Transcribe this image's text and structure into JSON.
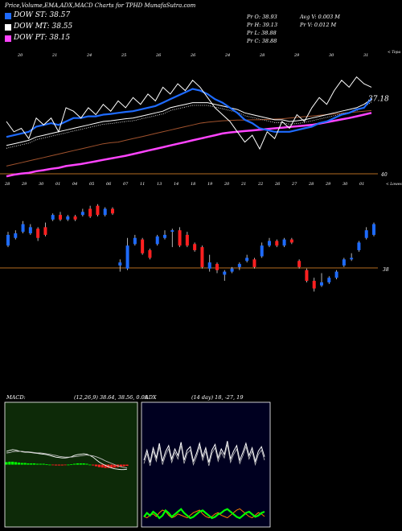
{
  "header": {
    "title": "Price,Volume,EMA,ADX,MACD Charts for TPHD MunafaSutra.com"
  },
  "legend": [
    {
      "label": "DOW ST: 38.57",
      "color": "#1e6bff"
    },
    {
      "label": "DOW MT: 38.55",
      "color": "#ffffff"
    },
    {
      "label": "DOW PT: 38.15",
      "color": "#ff44ff"
    }
  ],
  "stats": {
    "pr_open": "Pr O: 38.93",
    "pr_high": "Pr H: 39.13",
    "pr_low": "Pr L: 38.88",
    "pr_close": "Pr C: 38.88",
    "avg_vol": "Avg V: 0.003 M",
    "pr_vol": "Pr V: 0.012 M"
  },
  "colors": {
    "up": "#1e6bff",
    "down": "#ff2020",
    "ema_short": "#1e6bff",
    "ema_mid": "#ffffff",
    "ema_long": "#ff44ff",
    "ema_brown": "#a0522d",
    "level_line": "#b36b1f",
    "macd_bg": "#0d2a08",
    "adx_bg": "#000020",
    "macd_hist": "#00ff00",
    "adx_di_plus": "#00ff00",
    "adx_di_minus": "#ff7f00"
  },
  "chart_data": [
    {
      "type": "line",
      "name": "price-ema",
      "top_labels": [
        "20",
        "21",
        "24",
        "25",
        "26",
        "26",
        "24",
        "28",
        "29",
        "30",
        "31"
      ],
      "bottom_labels": [
        "28",
        "29",
        "30",
        "01",
        "04",
        "05",
        "06",
        "07",
        "11",
        "13",
        "14",
        "18",
        "19",
        "20",
        "21",
        "22",
        "26",
        "27",
        "28",
        "29",
        "30",
        "01"
      ],
      "level_value": "40",
      "last_value": "37.18",
      "top_right_label": "< Topa",
      "bottom_right_label": "< Lowesa",
      "price": [
        37.9,
        37.6,
        37.7,
        37.4,
        38.0,
        37.8,
        38.0,
        37.6,
        38.3,
        38.2,
        38.0,
        38.3,
        38.1,
        38.4,
        38.2,
        38.5,
        38.3,
        38.6,
        38.4,
        38.7,
        38.5,
        38.9,
        38.7,
        39.0,
        38.8,
        39.1,
        38.9,
        38.6,
        38.3,
        38.1,
        37.9,
        37.6,
        37.3,
        37.5,
        37.1,
        37.6,
        37.4,
        37.9,
        37.7,
        38.1,
        37.9,
        38.3,
        38.6,
        38.4,
        38.8,
        39.1,
        38.9,
        39.2,
        39.0,
        38.9
      ],
      "ema_short": [
        37.45,
        37.5,
        37.55,
        37.6,
        37.75,
        37.8,
        37.85,
        37.8,
        37.9,
        38.0,
        38.0,
        38.05,
        38.05,
        38.1,
        38.12,
        38.15,
        38.18,
        38.2,
        38.25,
        38.3,
        38.35,
        38.45,
        38.55,
        38.65,
        38.75,
        38.85,
        38.8,
        38.7,
        38.55,
        38.45,
        38.3,
        38.15,
        37.95,
        37.85,
        37.7,
        37.65,
        37.6,
        37.6,
        37.6,
        37.65,
        37.7,
        37.75,
        37.85,
        37.9,
        38.0,
        38.1,
        38.15,
        38.25,
        38.3,
        38.57
      ],
      "ema_mid": [
        37.2,
        37.25,
        37.3,
        37.35,
        37.45,
        37.5,
        37.55,
        37.6,
        37.65,
        37.7,
        37.75,
        37.8,
        37.85,
        37.9,
        37.92,
        37.95,
        37.98,
        38.0,
        38.05,
        38.1,
        38.15,
        38.2,
        38.3,
        38.35,
        38.4,
        38.45,
        38.45,
        38.45,
        38.4,
        38.35,
        38.3,
        38.25,
        38.15,
        38.1,
        38.05,
        38.0,
        37.95,
        37.95,
        37.9,
        37.92,
        37.95,
        38.0,
        38.05,
        38.1,
        38.15,
        38.2,
        38.25,
        38.3,
        38.4,
        38.55
      ],
      "ema_brown": [
        36.6,
        36.65,
        36.7,
        36.75,
        36.8,
        36.85,
        36.9,
        36.95,
        37.0,
        37.05,
        37.1,
        37.15,
        37.2,
        37.25,
        37.28,
        37.3,
        37.35,
        37.4,
        37.45,
        37.5,
        37.55,
        37.6,
        37.65,
        37.7,
        37.75,
        37.8,
        37.85,
        37.88,
        37.9,
        37.92,
        37.93,
        37.94,
        37.94,
        37.95,
        37.95,
        37.96,
        37.97,
        37.98,
        38.0,
        38.02,
        38.04,
        38.06,
        38.08,
        38.1,
        38.12,
        38.14,
        38.16,
        38.18,
        38.2,
        38.22
      ],
      "ema_long": [
        36.3,
        36.35,
        36.38,
        36.4,
        36.45,
        36.48,
        36.52,
        36.55,
        36.6,
        36.63,
        36.66,
        36.7,
        36.74,
        36.78,
        36.82,
        36.86,
        36.9,
        36.95,
        37.0,
        37.05,
        37.1,
        37.15,
        37.2,
        37.25,
        37.3,
        37.35,
        37.4,
        37.45,
        37.5,
        37.55,
        37.58,
        37.6,
        37.62,
        37.64,
        37.66,
        37.68,
        37.7,
        37.72,
        37.74,
        37.76,
        37.78,
        37.8,
        37.84,
        37.88,
        37.92,
        37.96,
        38.0,
        38.05,
        38.1,
        38.15
      ],
      "ylim": [
        36.0,
        39.8
      ]
    },
    {
      "type": "bar",
      "name": "candles",
      "level_value": "38",
      "candles": [
        {
          "o": 36.9,
          "c": 37.6,
          "h": 37.8,
          "l": 36.8
        },
        {
          "o": 37.4,
          "c": 37.7,
          "h": 37.9,
          "l": 37.3
        },
        {
          "o": 37.8,
          "c": 38.3,
          "h": 38.5,
          "l": 37.7
        },
        {
          "o": 37.7,
          "c": 38.1,
          "h": 38.3,
          "l": 37.6
        },
        {
          "o": 38.0,
          "c": 37.4,
          "h": 38.1,
          "l": 37.2
        },
        {
          "o": 38.1,
          "c": 37.6,
          "h": 38.4,
          "l": 37.5
        },
        {
          "o": 38.6,
          "c": 38.9,
          "h": 39.0,
          "l": 38.5
        },
        {
          "o": 38.9,
          "c": 38.6,
          "h": 39.1,
          "l": 38.5
        },
        {
          "o": 38.6,
          "c": 38.8,
          "h": 38.9,
          "l": 38.5
        },
        {
          "o": 38.8,
          "c": 38.6,
          "h": 38.9,
          "l": 38.5
        },
        {
          "o": 38.9,
          "c": 39.1,
          "h": 39.3,
          "l": 38.8
        },
        {
          "o": 39.3,
          "c": 38.8,
          "h": 39.5,
          "l": 38.7
        },
        {
          "o": 39.5,
          "c": 38.9,
          "h": 39.6,
          "l": 38.8
        },
        {
          "o": 38.9,
          "c": 39.3,
          "h": 39.4,
          "l": 38.8
        },
        {
          "o": 39.3,
          "c": 39.0,
          "h": 39.4,
          "l": 38.9
        },
        {
          "o": 35.6,
          "c": 35.8,
          "h": 36.0,
          "l": 35.2
        },
        {
          "o": 35.4,
          "c": 36.9,
          "h": 37.4,
          "l": 35.3
        },
        {
          "o": 37.0,
          "c": 37.4,
          "h": 37.6,
          "l": 36.9
        },
        {
          "o": 37.3,
          "c": 36.4,
          "h": 37.4,
          "l": 36.3
        },
        {
          "o": 36.6,
          "c": 36.1,
          "h": 36.7,
          "l": 36.0
        },
        {
          "o": 37.0,
          "c": 37.5,
          "h": 37.6,
          "l": 36.9
        },
        {
          "o": 37.4,
          "c": 37.6,
          "h": 37.9,
          "l": 37.3
        },
        {
          "o": 37.8,
          "c": 37.9,
          "h": 38.0,
          "l": 36.8
        },
        {
          "o": 37.9,
          "c": 36.9,
          "h": 38.1,
          "l": 36.8
        },
        {
          "o": 37.6,
          "c": 36.9,
          "h": 37.8,
          "l": 36.8
        },
        {
          "o": 37.0,
          "c": 36.6,
          "h": 37.1,
          "l": 36.5
        },
        {
          "o": 36.8,
          "c": 35.5,
          "h": 36.9,
          "l": 35.4
        },
        {
          "o": 35.4,
          "c": 35.8,
          "h": 36.3,
          "l": 35.2
        },
        {
          "o": 35.7,
          "c": 35.3,
          "h": 35.8,
          "l": 35.1
        },
        {
          "o": 35.0,
          "c": 35.2,
          "h": 35.3,
          "l": 34.6
        },
        {
          "o": 35.2,
          "c": 35.4,
          "h": 35.5,
          "l": 35.1
        },
        {
          "o": 35.5,
          "c": 35.7,
          "h": 35.8,
          "l": 35.3
        },
        {
          "o": 35.9,
          "c": 36.1,
          "h": 36.3,
          "l": 35.8
        },
        {
          "o": 36.0,
          "c": 35.5,
          "h": 36.1,
          "l": 35.4
        },
        {
          "o": 36.2,
          "c": 36.9,
          "h": 37.1,
          "l": 36.1
        },
        {
          "o": 36.9,
          "c": 37.2,
          "h": 37.4,
          "l": 36.8
        },
        {
          "o": 37.2,
          "c": 36.9,
          "h": 37.3,
          "l": 36.8
        },
        {
          "o": 36.9,
          "c": 37.3,
          "h": 37.4,
          "l": 36.8
        },
        {
          "o": 37.3,
          "c": 37.1,
          "h": 37.4,
          "l": 37.0
        },
        {
          "o": 35.9,
          "c": 35.5,
          "h": 36.0,
          "l": 35.4
        },
        {
          "o": 35.3,
          "c": 34.6,
          "h": 35.4,
          "l": 34.5
        },
        {
          "o": 34.6,
          "c": 34.1,
          "h": 34.8,
          "l": 33.9
        },
        {
          "o": 34.3,
          "c": 34.5,
          "h": 35.1,
          "l": 34.2
        },
        {
          "o": 34.5,
          "c": 34.8,
          "h": 34.9,
          "l": 34.4
        },
        {
          "o": 34.8,
          "c": 35.2,
          "h": 35.3,
          "l": 34.7
        },
        {
          "o": 35.6,
          "c": 36.0,
          "h": 36.1,
          "l": 35.5
        },
        {
          "o": 36.0,
          "c": 36.1,
          "h": 36.4,
          "l": 35.9
        },
        {
          "o": 36.6,
          "c": 37.1,
          "h": 37.2,
          "l": 36.5
        },
        {
          "o": 37.4,
          "c": 37.9,
          "h": 38.1,
          "l": 37.3
        },
        {
          "o": 37.6,
          "c": 38.3,
          "h": 38.4,
          "l": 37.5
        }
      ],
      "ylim": [
        33.5,
        39.8
      ]
    },
    {
      "type": "line",
      "name": "macd",
      "label": "MACD:",
      "params": "(12,26,9) 38.64, 38.56, 0.08",
      "macd_line": [
        0.32,
        0.34,
        0.36,
        0.35,
        0.33,
        0.31,
        0.3,
        0.3,
        0.29,
        0.28,
        0.27,
        0.26,
        0.25,
        0.24,
        0.22,
        0.2,
        0.18,
        0.17,
        0.16,
        0.16,
        0.17,
        0.19,
        0.22,
        0.24,
        0.25,
        0.26,
        0.25,
        0.22,
        0.18,
        0.12,
        0.06,
        0.02,
        -0.02,
        -0.05,
        -0.08,
        -0.1,
        -0.11,
        -0.12,
        -0.12,
        -0.11
      ],
      "signal_line": [
        0.28,
        0.29,
        0.31,
        0.32,
        0.32,
        0.32,
        0.31,
        0.31,
        0.3,
        0.29,
        0.28,
        0.28,
        0.27,
        0.26,
        0.25,
        0.23,
        0.22,
        0.2,
        0.19,
        0.18,
        0.18,
        0.18,
        0.19,
        0.2,
        0.21,
        0.22,
        0.23,
        0.22,
        0.21,
        0.19,
        0.16,
        0.13,
        0.09,
        0.06,
        0.03,
        0.0,
        -0.03,
        -0.05,
        -0.07,
        -0.08
      ],
      "histogram": [
        0.06,
        0.07,
        0.07,
        0.06,
        0.05,
        0.04,
        0.04,
        0.03,
        0.03,
        0.03,
        0.02,
        0.02,
        0.02,
        0.01,
        0.0,
        -0.01,
        -0.02,
        -0.02,
        -0.02,
        -0.01,
        0.0,
        0.01,
        0.02,
        0.03,
        0.03,
        0.03,
        0.02,
        0.0,
        -0.02,
        -0.04,
        -0.06,
        -0.07,
        -0.08,
        -0.08,
        -0.08,
        -0.07,
        -0.06,
        -0.05,
        -0.04,
        -0.03
      ],
      "ylim": [
        -1.5,
        1.5
      ]
    },
    {
      "type": "line",
      "name": "adx",
      "label": "ADX",
      "params": "(14 day) 18, -27, 19",
      "adx": [
        40,
        58,
        36,
        62,
        44,
        70,
        38,
        55,
        66,
        42,
        60,
        48,
        72,
        40,
        58,
        64,
        38,
        52,
        70,
        46,
        62,
        36,
        58,
        68,
        44,
        60,
        50,
        74,
        42,
        56,
        66,
        40,
        54,
        70,
        48,
        62,
        38,
        56,
        64,
        46
      ],
      "di_plus": [
        12,
        18,
        14,
        20,
        16,
        10,
        14,
        22,
        18,
        12,
        16,
        20,
        24,
        18,
        14,
        10,
        12,
        16,
        20,
        22,
        18,
        14,
        10,
        12,
        16,
        18,
        22,
        24,
        20,
        16,
        12,
        10,
        14,
        18,
        20,
        16,
        12,
        14,
        18,
        20
      ],
      "di_minus": [
        10,
        8,
        12,
        14,
        10,
        16,
        20,
        18,
        12,
        8,
        10,
        14,
        12,
        10,
        8,
        12,
        16,
        18,
        20,
        14,
        10,
        8,
        10,
        14,
        16,
        12,
        10,
        8,
        12,
        16,
        20,
        22,
        18,
        14,
        10,
        8,
        12,
        16,
        14,
        10
      ],
      "ylim": [
        0,
        100
      ]
    }
  ]
}
